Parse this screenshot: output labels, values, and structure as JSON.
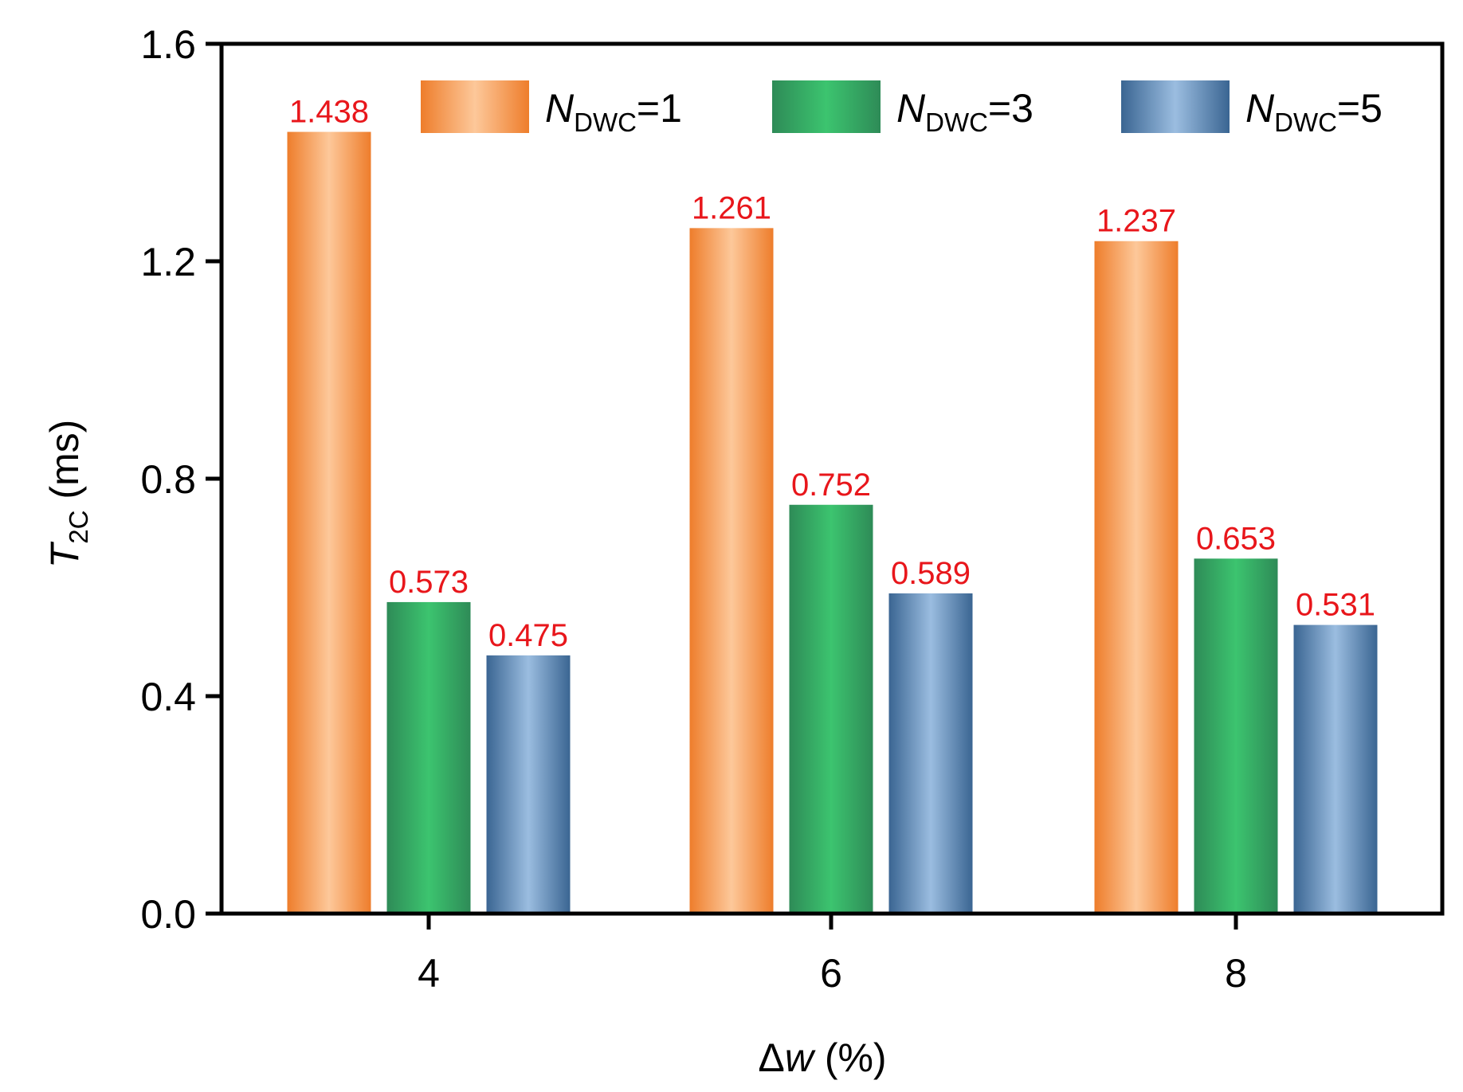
{
  "chart_data": {
    "type": "bar",
    "xlabel": {
      "prefix": "Δ",
      "var": "w",
      "suffix": " (%)"
    },
    "ylabel": {
      "var": "T",
      "sub": "2C",
      "suffix": " (ms)"
    },
    "categories": [
      "4",
      "6",
      "8"
    ],
    "ylim": [
      0.0,
      1.6
    ],
    "yticks": [
      "0.0",
      "0.4",
      "0.8",
      "1.2",
      "1.6"
    ],
    "series": [
      {
        "name": "N_DWC=1",
        "name_var": "N",
        "name_sub": "DWC",
        "name_suffix": "=1",
        "values": [
          1.438,
          1.261,
          1.237
        ],
        "labels": [
          "1.438",
          "1.261",
          "1.237"
        ],
        "colors": {
          "edge": "#ee7d2b",
          "mid": "#fdc89a"
        }
      },
      {
        "name": "N_DWC=3",
        "name_var": "N",
        "name_sub": "DWC",
        "name_suffix": "=3",
        "values": [
          0.573,
          0.752,
          0.653
        ],
        "labels": [
          "0.573",
          "0.752",
          "0.653"
        ],
        "colors": {
          "edge": "#2e8b57",
          "mid": "#3cc46f"
        }
      },
      {
        "name": "N_DWC=5",
        "name_var": "N",
        "name_sub": "DWC",
        "name_suffix": "=5",
        "values": [
          0.475,
          0.589,
          0.531
        ],
        "labels": [
          "0.475",
          "0.589",
          "0.531"
        ],
        "colors": {
          "edge": "#3a6592",
          "mid": "#9bbde0"
        }
      }
    ],
    "data_label_color": "#e8161b",
    "legend_position": "top-right",
    "grid": false
  }
}
